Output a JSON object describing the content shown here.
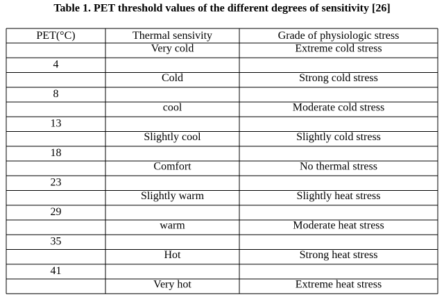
{
  "title": "Table 1. PET threshold values of the different degrees of sensitivity [26]",
  "table": {
    "header": [
      "PET(°C)",
      "Thermal sensivity",
      "Grade of physiologic stress"
    ],
    "levels": [
      {
        "sensation": "Very cold",
        "stress": "Extreme cold stress"
      },
      {
        "sensation": "Cold",
        "stress": "Strong cold stress"
      },
      {
        "sensation": "cool",
        "stress": "Moderate cold stress"
      },
      {
        "sensation": "Slightly cool",
        "stress": "Slightly cold stress"
      },
      {
        "sensation": "Comfort",
        "stress": "No thermal stress"
      },
      {
        "sensation": "Slightly warm",
        "stress": "Slightly heat stress"
      },
      {
        "sensation": "warm",
        "stress": "Moderate heat stress"
      },
      {
        "sensation": "Hot",
        "stress": "Strong heat stress"
      },
      {
        "sensation": "Very hot",
        "stress": "Extreme heat stress"
      }
    ],
    "thresholds": [
      4,
      8,
      13,
      18,
      23,
      29,
      35,
      41
    ]
  }
}
